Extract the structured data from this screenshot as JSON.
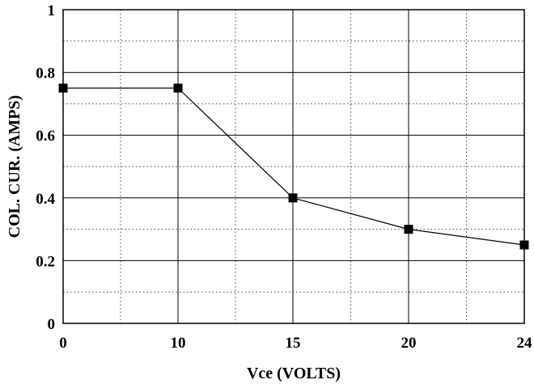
{
  "chart_data": {
    "type": "line",
    "title": "",
    "xlabel": "Vce (VOLTS)",
    "ylabel": "COL. CUR.  (AMPS)",
    "x_ticks": [
      "0",
      "10",
      "15",
      "20",
      "24"
    ],
    "y_ticks": [
      "0",
      "0.2",
      "0.4",
      "0.6",
      "0.8",
      "1"
    ],
    "ylim": [
      0,
      1
    ],
    "grid": true,
    "grid_style": "solid major lines with dotted minor lines",
    "legend": "none",
    "series": [
      {
        "points": [
          {
            "x": 0,
            "y": 0.75
          },
          {
            "x": 10,
            "y": 0.75
          },
          {
            "x": 15,
            "y": 0.4
          },
          {
            "x": 20,
            "y": 0.3
          },
          {
            "x": 24,
            "y": 0.25
          }
        ],
        "marker": "square",
        "color": "#000000"
      }
    ]
  }
}
